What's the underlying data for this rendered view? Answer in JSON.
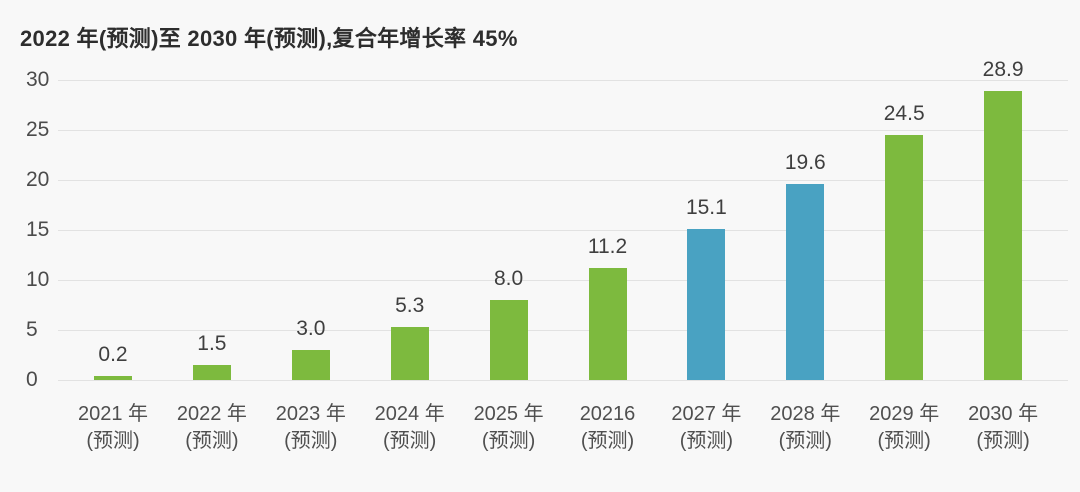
{
  "page": {
    "background": "#f8f8f8"
  },
  "chart_data": {
    "type": "bar",
    "title": "2022 年(预测)至 2030 年(预测),复合年增长率 45%",
    "categories": [
      "2021 年",
      "2022 年",
      "2023 年",
      "2024 年",
      "2025 年",
      "20216",
      "2027 年",
      "2028 年",
      "2029 年",
      "2030 年"
    ],
    "category_sublabels": [
      "(预测)",
      "(预测)",
      "(预测)",
      "(预测)",
      "(预测)",
      "(预测)",
      "(预测)",
      "(预测)",
      "(预测)",
      "(预测)"
    ],
    "values": [
      0.2,
      1.5,
      3.0,
      5.3,
      8.0,
      11.2,
      15.1,
      19.6,
      24.5,
      28.9
    ],
    "value_labels": [
      "0.2",
      "1.5",
      "3.0",
      "5.3",
      "8.0",
      "11.2",
      "15.1",
      "19.6",
      "24.5",
      "28.9"
    ],
    "bar_colors": [
      "#7dba3e",
      "#7dba3e",
      "#7dba3e",
      "#7dba3e",
      "#7dba3e",
      "#7dba3e",
      "#49a2c2",
      "#49a2c2",
      "#7dba3e",
      "#7dba3e"
    ],
    "yticks": [
      0,
      5,
      10,
      15,
      20,
      25,
      30
    ],
    "ylim": [
      0,
      30
    ],
    "xlabel": "",
    "ylabel": "",
    "legend": "none",
    "grid": "horizontal",
    "colors": {
      "green": "#7dba3e",
      "blue": "#49a2c2",
      "gridline": "#e2e2e2",
      "title_text": "#2d2d2d",
      "tick_text": "#4b4b4b",
      "value_text": "#3f3f3f",
      "axis_text": "#4f4f4f",
      "background": "#f8f8f8"
    }
  }
}
